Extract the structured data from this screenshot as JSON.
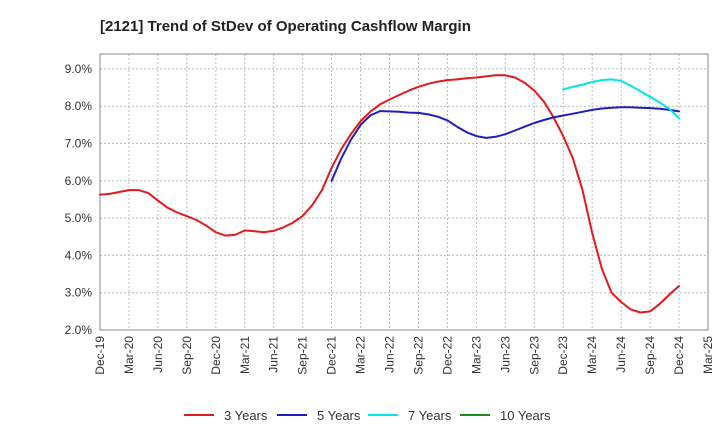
{
  "chart_data": {
    "type": "line",
    "title": "[2121]  Trend of StDev of Operating Cashflow Margin",
    "xlabel": "",
    "ylabel": "",
    "x_ticks": [
      "Dec-19",
      "Mar-20",
      "Jun-20",
      "Sep-20",
      "Dec-20",
      "Mar-21",
      "Jun-21",
      "Sep-21",
      "Dec-21",
      "Mar-22",
      "Jun-22",
      "Sep-22",
      "Dec-22",
      "Mar-23",
      "Jun-23",
      "Sep-23",
      "Dec-23",
      "Mar-24",
      "Jun-24",
      "Sep-24",
      "Dec-24",
      "Mar-25"
    ],
    "y_ticks": [
      "2.0%",
      "3.0%",
      "4.0%",
      "5.0%",
      "6.0%",
      "7.0%",
      "8.0%",
      "9.0%"
    ],
    "ylim": [
      2.0,
      9.4
    ],
    "grid": true,
    "legend_position": "bottom",
    "series": [
      {
        "name": "3 Years",
        "color": "#e31a1c",
        "x": [
          "Dec-19",
          "Jan-20",
          "Feb-20",
          "Mar-20",
          "Apr-20",
          "May-20",
          "Jun-20",
          "Jul-20",
          "Aug-20",
          "Sep-20",
          "Oct-20",
          "Nov-20",
          "Dec-20",
          "Jan-21",
          "Feb-21",
          "Mar-21",
          "Apr-21",
          "May-21",
          "Jun-21",
          "Jul-21",
          "Aug-21",
          "Sep-21",
          "Oct-21",
          "Nov-21",
          "Dec-21",
          "Jan-22",
          "Feb-22",
          "Mar-22",
          "Apr-22",
          "May-22",
          "Jun-22",
          "Jul-22",
          "Aug-22",
          "Sep-22",
          "Oct-22",
          "Nov-22",
          "Dec-22",
          "Jan-23",
          "Feb-23",
          "Mar-23",
          "Apr-23",
          "May-23",
          "Jun-23",
          "Jul-23",
          "Aug-23",
          "Sep-23",
          "Oct-23",
          "Nov-23",
          "Dec-23",
          "Jan-24",
          "Feb-24",
          "Mar-24",
          "Apr-24",
          "May-24",
          "Jun-24",
          "Jul-24",
          "Aug-24",
          "Sep-24",
          "Oct-24",
          "Nov-24",
          "Dec-24"
        ],
        "values": [
          5.63,
          5.65,
          5.7,
          5.75,
          5.75,
          5.67,
          5.47,
          5.28,
          5.15,
          5.05,
          4.95,
          4.8,
          4.62,
          4.53,
          4.55,
          4.67,
          4.65,
          4.62,
          4.66,
          4.75,
          4.88,
          5.06,
          5.35,
          5.75,
          6.35,
          6.85,
          7.25,
          7.6,
          7.85,
          8.05,
          8.18,
          8.3,
          8.42,
          8.52,
          8.6,
          8.66,
          8.7,
          8.72,
          8.75,
          8.77,
          8.8,
          8.83,
          8.83,
          8.77,
          8.63,
          8.42,
          8.12,
          7.7,
          7.2,
          6.6,
          5.75,
          4.6,
          3.65,
          3.0,
          2.75,
          2.55,
          2.47,
          2.5,
          2.7,
          2.95,
          3.18
        ]
      },
      {
        "name": "5 Years",
        "color": "#1f1fbf",
        "x": [
          "Dec-21",
          "Jan-22",
          "Feb-22",
          "Mar-22",
          "Apr-22",
          "May-22",
          "Jun-22",
          "Jul-22",
          "Aug-22",
          "Sep-22",
          "Oct-22",
          "Nov-22",
          "Dec-22",
          "Jan-23",
          "Feb-23",
          "Mar-23",
          "Apr-23",
          "May-23",
          "Jun-23",
          "Jul-23",
          "Aug-23",
          "Sep-23",
          "Oct-23",
          "Nov-23",
          "Dec-23",
          "Jan-24",
          "Feb-24",
          "Mar-24",
          "Apr-24",
          "May-24",
          "Jun-24",
          "Jul-24",
          "Aug-24",
          "Sep-24",
          "Oct-24",
          "Nov-24",
          "Dec-24"
        ],
        "values": [
          6.0,
          6.6,
          7.1,
          7.5,
          7.75,
          7.87,
          7.86,
          7.85,
          7.83,
          7.82,
          7.78,
          7.72,
          7.62,
          7.45,
          7.3,
          7.2,
          7.15,
          7.18,
          7.25,
          7.35,
          7.45,
          7.55,
          7.63,
          7.7,
          7.75,
          7.8,
          7.85,
          7.9,
          7.94,
          7.96,
          7.97,
          7.97,
          7.96,
          7.95,
          7.93,
          7.9,
          7.86
        ]
      },
      {
        "name": "7 Years",
        "color": "#00e5ee",
        "x": [
          "Dec-23",
          "Jan-24",
          "Feb-24",
          "Mar-24",
          "Apr-24",
          "May-24",
          "Jun-24",
          "Jul-24",
          "Aug-24",
          "Sep-24",
          "Oct-24",
          "Nov-24",
          "Dec-24"
        ],
        "values": [
          8.45,
          8.52,
          8.58,
          8.65,
          8.7,
          8.72,
          8.68,
          8.55,
          8.4,
          8.25,
          8.1,
          7.93,
          7.68
        ]
      },
      {
        "name": "10 Years",
        "color": "#1a8c1a",
        "x": [],
        "values": []
      }
    ]
  }
}
